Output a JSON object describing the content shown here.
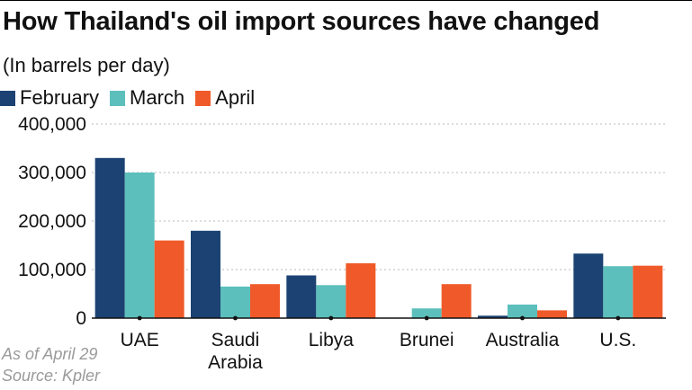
{
  "title": "How Thailand's oil import sources have changed",
  "subtitle": "(In barrels per day)",
  "footnotes": {
    "as_of": "As of April 29",
    "source": "Source: Kpler"
  },
  "colors": {
    "February": "#1b4272",
    "March": "#5cbfbc",
    "April": "#f05a2a",
    "grid": "#c8c8c8",
    "axis": "#111111"
  },
  "chart_data": {
    "type": "bar",
    "title": "How Thailand's oil import sources have changed",
    "subtitle": "(In barrels per day)",
    "xlabel": "",
    "ylabel": "",
    "categories": [
      "UAE",
      "Saudi\nArabia",
      "Libya",
      "Brunei",
      "Australia",
      "U.S."
    ],
    "series": [
      {
        "name": "February",
        "values": [
          330000,
          180000,
          88000,
          0,
          5000,
          133000
        ]
      },
      {
        "name": "March",
        "values": [
          300000,
          65000,
          68000,
          20000,
          28000,
          107000
        ]
      },
      {
        "name": "April",
        "values": [
          160000,
          70000,
          113000,
          70000,
          16000,
          108000
        ]
      }
    ],
    "ylim": [
      0,
      400000
    ],
    "yticks": [
      0,
      100000,
      200000,
      300000,
      400000
    ],
    "ytick_labels": [
      "0",
      "100,000",
      "200,000",
      "300,000",
      "400,000"
    ],
    "grid": true,
    "legend": "top-left"
  }
}
